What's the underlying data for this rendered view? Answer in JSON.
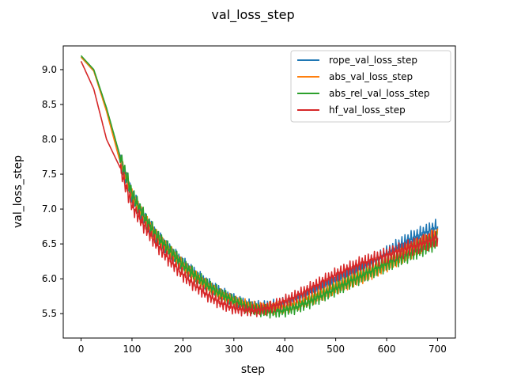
{
  "chart_data": {
    "type": "line",
    "title": "val_loss_step",
    "xlabel": "step",
    "ylabel": "val_loss_step",
    "xlim": [
      -35,
      735
    ],
    "ylim": [
      5.15,
      9.34
    ],
    "x_ticks": [
      0,
      100,
      200,
      300,
      400,
      500,
      600,
      700
    ],
    "y_ticks": [
      5.5,
      6.0,
      6.5,
      7.0,
      7.5,
      8.0,
      8.5,
      9.0
    ],
    "x_tick_labels": [
      "0",
      "100",
      "200",
      "300",
      "400",
      "500",
      "600",
      "700"
    ],
    "y_tick_labels": [
      "5.5",
      "6.0",
      "6.5",
      "7.0",
      "7.5",
      "8.0",
      "8.5",
      "9.0"
    ],
    "grid": false,
    "legend_position": "top-right",
    "x": [
      0,
      25,
      50,
      75,
      100,
      125,
      150,
      175,
      200,
      225,
      250,
      275,
      300,
      325,
      350,
      375,
      400,
      425,
      450,
      475,
      500,
      525,
      550,
      575,
      600,
      625,
      650,
      675,
      700
    ],
    "series": [
      {
        "name": "rope_val_loss_step",
        "color": "#1f77b4",
        "values": [
          9.18,
          8.98,
          8.43,
          7.73,
          7.2,
          6.85,
          6.6,
          6.4,
          6.22,
          6.06,
          5.92,
          5.8,
          5.7,
          5.63,
          5.6,
          5.61,
          5.65,
          5.72,
          5.8,
          5.88,
          5.96,
          6.05,
          6.14,
          6.25,
          6.36,
          6.48,
          6.58,
          6.66,
          6.74
        ]
      },
      {
        "name": "abs_val_loss_step",
        "color": "#ff7f0e",
        "values": [
          9.18,
          8.98,
          8.4,
          7.72,
          7.18,
          6.84,
          6.58,
          6.38,
          6.18,
          6.02,
          5.88,
          5.76,
          5.68,
          5.62,
          5.58,
          5.58,
          5.6,
          5.65,
          5.72,
          5.8,
          5.88,
          5.96,
          6.04,
          6.12,
          6.22,
          6.32,
          6.42,
          6.52,
          6.62
        ]
      },
      {
        "name": "abs_rel_val_loss_step",
        "color": "#2ca02c",
        "values": [
          9.2,
          9.0,
          8.45,
          7.8,
          7.22,
          6.88,
          6.6,
          6.4,
          6.2,
          6.04,
          5.9,
          5.78,
          5.68,
          5.6,
          5.55,
          5.53,
          5.55,
          5.6,
          5.68,
          5.77,
          5.86,
          5.95,
          6.04,
          6.13,
          6.22,
          6.3,
          6.38,
          6.46,
          6.56
        ]
      },
      {
        "name": "hf_val_loss_step",
        "color": "#d62728",
        "values": [
          9.12,
          8.72,
          8.0,
          7.62,
          7.05,
          6.75,
          6.48,
          6.26,
          6.06,
          5.9,
          5.76,
          5.65,
          5.58,
          5.55,
          5.55,
          5.6,
          5.68,
          5.76,
          5.86,
          5.96,
          6.06,
          6.14,
          6.22,
          6.28,
          6.34,
          6.4,
          6.46,
          6.52,
          6.6
        ]
      }
    ]
  }
}
